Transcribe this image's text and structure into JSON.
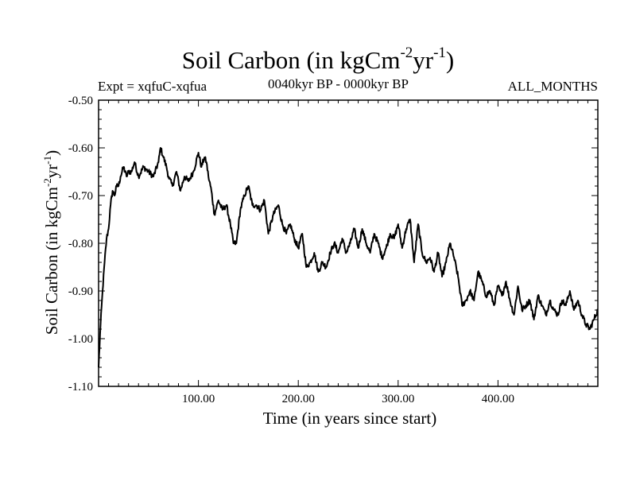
{
  "title": {
    "prefix": "Soil Carbon (in kgCm",
    "exp1": "-2",
    "mid": "yr",
    "exp2": "-1",
    "suffix": ")"
  },
  "header": {
    "left": "Expt = xqfuC-xqfua",
    "center": "0040kyr BP - 0000kyr BP",
    "right": "ALL_MONTHS"
  },
  "axes": {
    "xlabel": "Time (in years since start)",
    "ylabel": {
      "prefix": "Soil Carbon (in kgCm",
      "exp1": "-2",
      "mid": "yr",
      "exp2": "-1",
      "suffix": ")"
    }
  },
  "chart_data": {
    "type": "line",
    "title": "Soil Carbon (in kgCm-2yr-1)",
    "xlabel": "Time (in years since start)",
    "ylabel": "Soil Carbon (in kgCm-2yr-1)",
    "xlim": [
      0,
      500
    ],
    "ylim": [
      -1.1,
      -0.5
    ],
    "xticks": [
      100,
      200,
      300,
      400
    ],
    "xtick_labels": [
      "100.00",
      "200.00",
      "300.00",
      "400.00"
    ],
    "yticks": [
      -1.1,
      -1.0,
      -0.9,
      -0.8,
      -0.7,
      -0.6,
      -0.5
    ],
    "ytick_labels": [
      "-1.10",
      "-1.00",
      "-0.90",
      "-0.80",
      "-0.70",
      "-0.60",
      "-0.50"
    ],
    "series": [
      {
        "name": "Soil Carbon",
        "color": "#000000",
        "x": [
          0,
          2,
          4,
          6,
          8,
          10,
          12,
          14,
          16,
          18,
          20,
          22,
          25,
          28,
          30,
          33,
          36,
          40,
          45,
          50,
          55,
          60,
          62,
          65,
          68,
          70,
          74,
          78,
          82,
          86,
          90,
          95,
          100,
          103,
          106,
          108,
          110,
          113,
          116,
          120,
          124,
          128,
          132,
          135,
          138,
          142,
          146,
          150,
          154,
          158,
          162,
          166,
          170,
          175,
          180,
          184,
          188,
          192,
          196,
          200,
          204,
          208,
          212,
          216,
          220,
          224,
          228,
          232,
          236,
          240,
          244,
          248,
          252,
          256,
          260,
          264,
          268,
          272,
          276,
          280,
          284,
          288,
          292,
          296,
          300,
          304,
          308,
          312,
          316,
          320,
          324,
          328,
          332,
          336,
          340,
          344,
          348,
          352,
          356,
          360,
          364,
          368,
          372,
          376,
          380,
          384,
          388,
          392,
          396,
          400,
          404,
          408,
          412,
          416,
          420,
          424,
          428,
          432,
          436,
          440,
          444,
          448,
          452,
          456,
          460,
          464,
          468,
          472,
          476,
          480,
          484,
          488,
          492,
          496,
          500
        ],
        "y": [
          -1.06,
          -0.97,
          -0.9,
          -0.84,
          -0.79,
          -0.77,
          -0.72,
          -0.69,
          -0.7,
          -0.68,
          -0.68,
          -0.66,
          -0.64,
          -0.66,
          -0.65,
          -0.65,
          -0.63,
          -0.66,
          -0.64,
          -0.65,
          -0.66,
          -0.63,
          -0.6,
          -0.62,
          -0.64,
          -0.66,
          -0.68,
          -0.65,
          -0.69,
          -0.66,
          -0.67,
          -0.65,
          -0.61,
          -0.64,
          -0.62,
          -0.63,
          -0.66,
          -0.69,
          -0.74,
          -0.71,
          -0.73,
          -0.72,
          -0.76,
          -0.8,
          -0.8,
          -0.73,
          -0.7,
          -0.68,
          -0.72,
          -0.72,
          -0.73,
          -0.71,
          -0.78,
          -0.74,
          -0.72,
          -0.76,
          -0.78,
          -0.76,
          -0.79,
          -0.81,
          -0.78,
          -0.85,
          -0.84,
          -0.82,
          -0.86,
          -0.84,
          -0.85,
          -0.82,
          -0.8,
          -0.82,
          -0.79,
          -0.82,
          -0.8,
          -0.77,
          -0.81,
          -0.77,
          -0.8,
          -0.82,
          -0.78,
          -0.8,
          -0.83,
          -0.81,
          -0.78,
          -0.79,
          -0.76,
          -0.81,
          -0.77,
          -0.75,
          -0.84,
          -0.76,
          -0.82,
          -0.84,
          -0.83,
          -0.86,
          -0.82,
          -0.87,
          -0.84,
          -0.8,
          -0.83,
          -0.87,
          -0.93,
          -0.92,
          -0.9,
          -0.92,
          -0.86,
          -0.88,
          -0.91,
          -0.9,
          -0.93,
          -0.89,
          -0.91,
          -0.88,
          -0.92,
          -0.95,
          -0.89,
          -0.94,
          -0.93,
          -0.92,
          -0.96,
          -0.91,
          -0.93,
          -0.95,
          -0.92,
          -0.94,
          -0.95,
          -0.92,
          -0.93,
          -0.9,
          -0.94,
          -0.92,
          -0.95,
          -0.97,
          -0.98,
          -0.96,
          -0.94
        ]
      }
    ]
  }
}
